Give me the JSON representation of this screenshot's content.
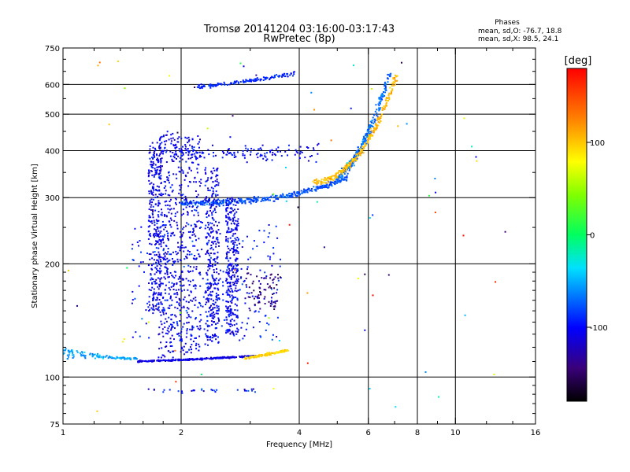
{
  "chart_data": {
    "type": "scatter",
    "title": "Tromsø 20141204 03:16:00-03:17:43",
    "subtitle": "RwPretec (8p)",
    "xlabel": "Frequency [MHz]",
    "ylabel": "Stationary phase Virtual Height [km]",
    "x_scale": "log",
    "y_scale": "log",
    "xlim": [
      1,
      16
    ],
    "ylim": [
      75,
      750
    ],
    "x_ticks": [
      1,
      2,
      4,
      6,
      8,
      10,
      16
    ],
    "x_tick_labels": [
      "1",
      "2",
      "4",
      "6",
      "8",
      "10",
      "16"
    ],
    "x_minor_ticks": [
      1.2,
      1.4,
      1.6,
      1.8,
      3,
      5,
      7,
      9,
      12,
      14
    ],
    "y_ticks": [
      75,
      100,
      200,
      300,
      400,
      500,
      600,
      750
    ],
    "y_tick_labels": [
      "75",
      "100",
      "200",
      "300",
      "400",
      "500",
      "600",
      "750"
    ],
    "y_minor_ticks": [
      80,
      85,
      90,
      95,
      110,
      120,
      130,
      140,
      150,
      160,
      170,
      180,
      190,
      250,
      350,
      450,
      550,
      650,
      700
    ],
    "grid_x": [
      2,
      4,
      6,
      8,
      10
    ],
    "grid_y": [
      100,
      200,
      300,
      400,
      500,
      600
    ],
    "grid": true,
    "stats_header": "Phases",
    "stats": [
      "mean, sd,O: -76.7, 18.8",
      "mean, sd,X:  98.5, 24.1"
    ],
    "colorbar": {
      "label": "[deg]",
      "range": [
        -180,
        180
      ],
      "ticks": [
        100,
        0,
        -100
      ],
      "tick_labels": [
        "100",
        "0",
        "-100"
      ],
      "colormap": "rainbow"
    },
    "point_color": "phase in deg",
    "trace_groups": [
      {
        "name": "O-mode E-trace (continuous)",
        "x_range": [
          1.55,
          3.1
        ],
        "y_range": [
          110,
          115
        ],
        "phase": -110
      },
      {
        "name": "X-mode E-trace",
        "x_range": [
          2.9,
          3.75
        ],
        "y_range": [
          112,
          118
        ],
        "phase": 95
      },
      {
        "name": "Low-frequency E-layer trace",
        "x_range": [
          1.0,
          1.5
        ],
        "y_range": [
          110,
          125
        ],
        "phase": -60
      },
      {
        "name": "O-mode F-trace",
        "x_range": [
          2.0,
          5.2
        ],
        "y_range": [
          290,
          340
        ],
        "phase": -75
      },
      {
        "name": "O-mode F-trace cusp",
        "x_range": [
          5.0,
          7.0
        ],
        "y_range": [
          340,
          650
        ],
        "phase": -70
      },
      {
        "name": "X-mode F-trace",
        "x_range": [
          4.4,
          7.1
        ],
        "y_range": [
          330,
          640
        ],
        "phase": 100
      },
      {
        "name": "Second-hop F-trace",
        "x_range": [
          2.2,
          3.9
        ],
        "y_range": [
          590,
          650
        ],
        "phase": -90
      },
      {
        "name": "Spread-F echoes",
        "x_range": [
          1.5,
          2.6
        ],
        "y_range": [
          130,
          450
        ],
        "phase": -100
      },
      {
        "name": "Multipath scatter",
        "x_range": [
          1.4,
          3.8
        ],
        "y_range": [
          150,
          350
        ],
        "phase": -80
      }
    ]
  }
}
